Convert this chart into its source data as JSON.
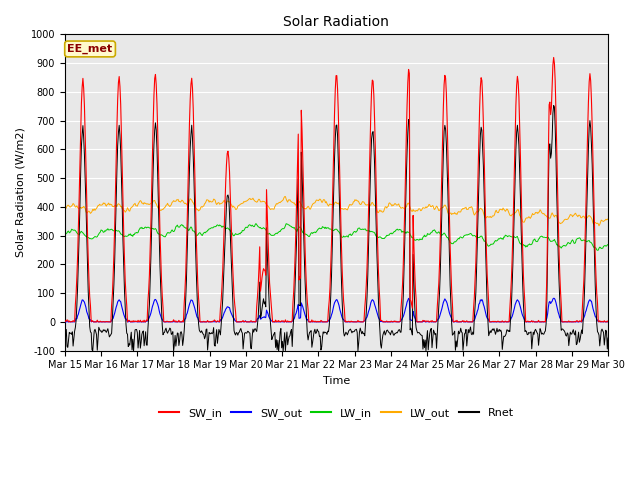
{
  "title": "Solar Radiation",
  "ylabel": "Solar Radiation (W/m2)",
  "xlabel": "Time",
  "ylim": [
    -100,
    1000
  ],
  "yticks": [
    -100,
    0,
    100,
    200,
    300,
    400,
    500,
    600,
    700,
    800,
    900,
    1000
  ],
  "n_days": 15,
  "annotation": "EE_met",
  "colors": {
    "SW_in": "#ff0000",
    "SW_out": "#0000ff",
    "LW_in": "#00cc00",
    "LW_out": "#ffaa00",
    "Rnet": "#000000"
  },
  "background_color": "#e8e8e8",
  "fig_bg": "#ffffff",
  "title_fontsize": 10,
  "label_fontsize": 8,
  "tick_fontsize": 7,
  "legend_fontsize": 8
}
